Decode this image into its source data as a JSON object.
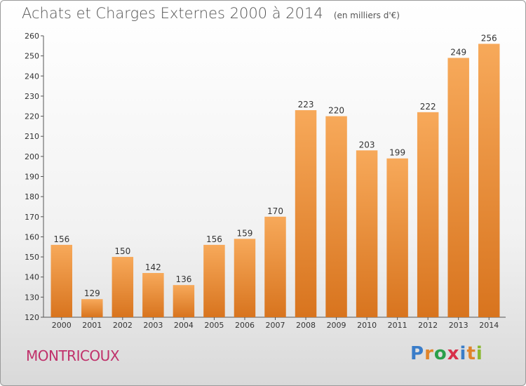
{
  "chart_data": {
    "type": "bar",
    "title": "Achats et Charges Externes 2000 à 2014",
    "subtitle": "(en milliers d'€)",
    "categories": [
      "2000",
      "2001",
      "2002",
      "2003",
      "2004",
      "2005",
      "2006",
      "2007",
      "2008",
      "2009",
      "2010",
      "2011",
      "2012",
      "2013",
      "2014"
    ],
    "values": [
      156,
      129,
      150,
      142,
      136,
      156,
      159,
      170,
      223,
      220,
      203,
      199,
      222,
      249,
      256
    ],
    "ylim": [
      120,
      260
    ],
    "yticks": [
      120,
      130,
      140,
      150,
      160,
      170,
      180,
      190,
      200,
      210,
      220,
      230,
      240,
      250,
      260
    ],
    "grid": false,
    "legend": "none",
    "bar_color": "#f0903a"
  },
  "location": "MONTRICOUX",
  "brand": {
    "letters": [
      "P",
      "r",
      "o",
      "x",
      "i",
      "t",
      "i"
    ]
  }
}
